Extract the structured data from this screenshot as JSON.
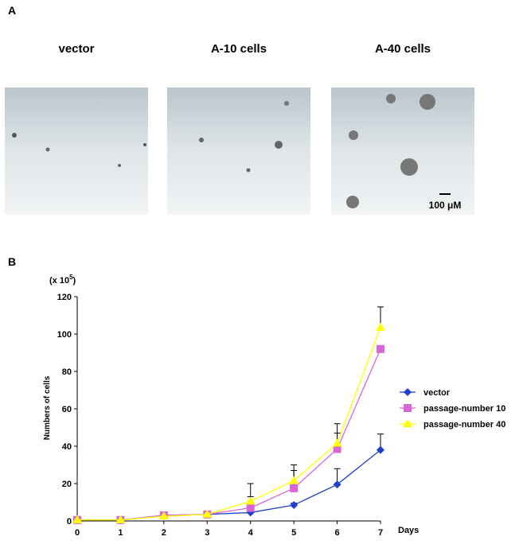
{
  "panel_a": {
    "label": "A",
    "images": [
      "vector",
      "A-10 cells",
      "A-40 cells"
    ],
    "scale_bar": "100 μM"
  },
  "panel_b": {
    "label": "B"
  },
  "chart_data": {
    "type": "line",
    "y_unit": {
      "open": "(x 10",
      "exponent": "5",
      "close": ")"
    },
    "ylabel": "Numbers of cells",
    "xlabel": "Days",
    "x": [
      0,
      1,
      2,
      3,
      4,
      5,
      6,
      7
    ],
    "xlim": [
      0,
      7
    ],
    "xticks": [
      0,
      1,
      2,
      3,
      4,
      5,
      6,
      7
    ],
    "ylim": [
      0,
      120
    ],
    "yticks": [
      0,
      20,
      40,
      60,
      80,
      100,
      120
    ],
    "legend": "right",
    "series": [
      {
        "name": "vector",
        "color": "#1f3fcf",
        "marker": "diamond",
        "values": [
          0.5,
          0.5,
          3,
          3.5,
          4.5,
          8.5,
          19.5,
          38
        ],
        "errors": [
          0,
          0,
          0,
          0,
          1,
          1,
          8.5,
          8.5
        ]
      },
      {
        "name": "passage-number 10",
        "color": "#d966d6",
        "marker": "square",
        "values": [
          0.5,
          0.5,
          3,
          3.5,
          7,
          17.5,
          38.5,
          92
        ],
        "errors": [
          0,
          0,
          0,
          0,
          6,
          9.5,
          8.5,
          0
        ]
      },
      {
        "name": "passage-number 40",
        "color": "#ffff00",
        "marker": "triangle",
        "values": [
          0.5,
          0.5,
          2.5,
          3.5,
          10.5,
          21.5,
          41.5,
          103.5
        ],
        "errors": [
          0,
          0,
          0,
          0,
          9.5,
          8.5,
          10.5,
          11
        ]
      }
    ]
  }
}
